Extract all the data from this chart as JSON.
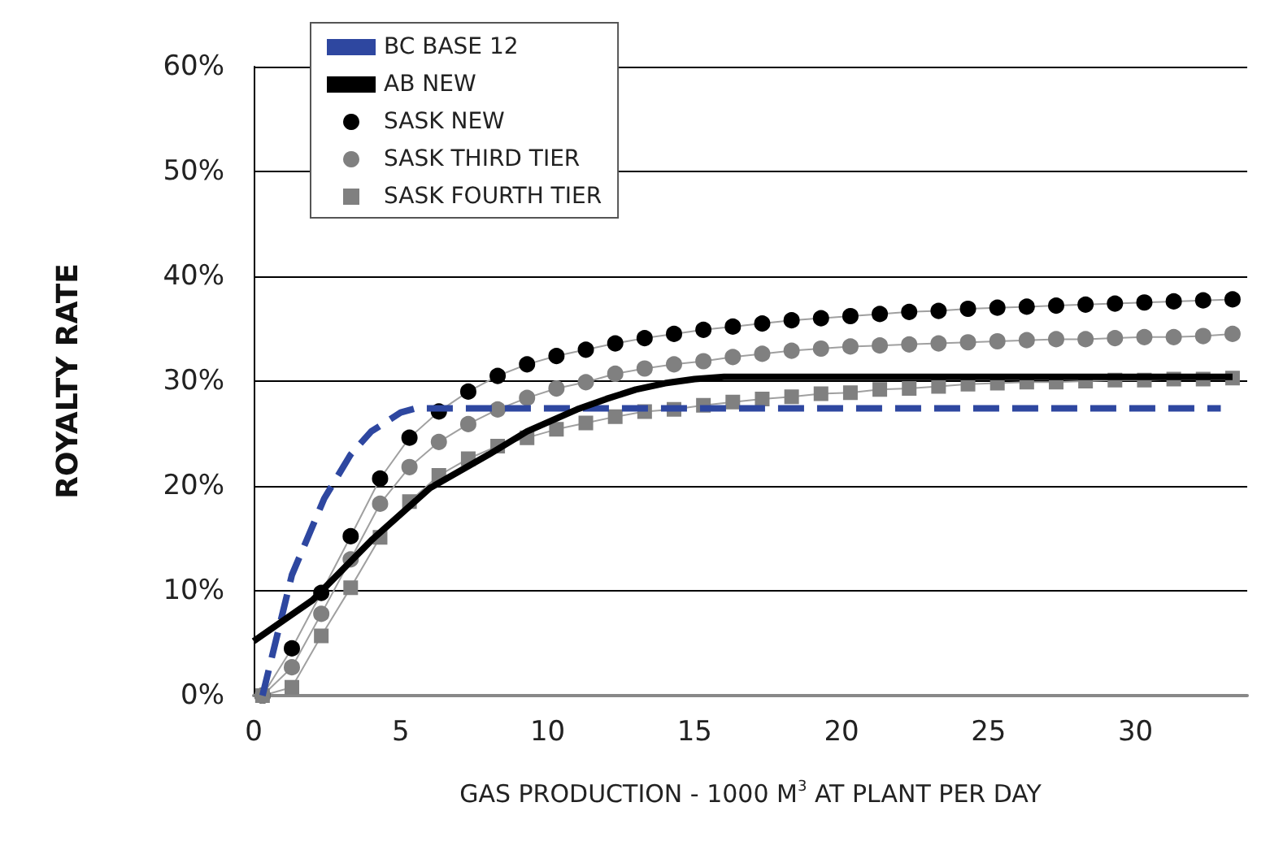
{
  "chart_data": {
    "type": "line",
    "xlabel": "GAS PRODUCTION - 1000 M$^{3}$ AT PLANT PER DAY",
    "ylabel": "ROYALTY RATE",
    "xlim": [
      0,
      33.8
    ],
    "ylim": [
      0,
      60
    ],
    "xticks": [
      0,
      5,
      10,
      15,
      20,
      25,
      30
    ],
    "yticks": [
      {
        "value": 0,
        "label": "0%"
      },
      {
        "value": 10,
        "label": "10%"
      },
      {
        "value": 20,
        "label": "20%"
      },
      {
        "value": 30,
        "label": "30%"
      },
      {
        "value": 40,
        "label": "40%"
      },
      {
        "value": 50,
        "label": "50%"
      },
      {
        "value": 60,
        "label": "60%"
      }
    ],
    "grid": "y",
    "legend": "top left",
    "series": [
      {
        "name": "BC BASE 12",
        "color": "#2e47a0",
        "line_style": "dashed",
        "marker": "none",
        "x": [
          0.3,
          1.3,
          2.4,
          3.3,
          4,
          5,
          5.5,
          32.9
        ],
        "values": [
          0,
          11.5,
          18.8,
          23.0,
          25.2,
          27.0,
          27.4,
          27.4
        ]
      },
      {
        "name": "AB NEW",
        "color": "#000000",
        "line_style": "solid",
        "marker": "none",
        "x": [
          0,
          2,
          4,
          6,
          8,
          9.3,
          11,
          12,
          13,
          14,
          15,
          16,
          20,
          25,
          33.3
        ],
        "values": [
          5.2,
          9.1,
          14.8,
          19.8,
          23.0,
          25.2,
          27.3,
          28.3,
          29.2,
          29.8,
          30.2,
          30.4,
          30.4,
          30.4,
          30.4
        ]
      },
      {
        "name": "SASK NEW",
        "color": "#000000",
        "line_style": "solid",
        "marker": "circle",
        "x": [
          0.3,
          1.3,
          2.3,
          3.3,
          4.3,
          5.3,
          6.3,
          7.3,
          8.3,
          9.3,
          10.3,
          11.3,
          12.3,
          13.3,
          14.3,
          15.3,
          16.3,
          17.3,
          18.3,
          19.3,
          20.3,
          21.3,
          22.3,
          23.3,
          24.3,
          25.3,
          26.3,
          27.3,
          28.3,
          29.3,
          30.3,
          31.3,
          32.3,
          33.3
        ],
        "values": [
          0,
          4.5,
          9.8,
          15.2,
          20.7,
          24.6,
          27.1,
          29.0,
          30.5,
          31.6,
          32.4,
          33.0,
          33.6,
          34.1,
          34.5,
          34.9,
          35.2,
          35.5,
          35.8,
          36.0,
          36.2,
          36.4,
          36.6,
          36.7,
          36.9,
          37.0,
          37.1,
          37.2,
          37.3,
          37.4,
          37.5,
          37.6,
          37.7,
          37.8
        ]
      },
      {
        "name": "SASK THIRD TIER",
        "color": "#808080",
        "line_style": "solid",
        "marker": "circle",
        "x": [
          0.3,
          1.3,
          2.3,
          3.3,
          4.3,
          5.3,
          6.3,
          7.3,
          8.3,
          9.3,
          10.3,
          11.3,
          12.3,
          13.3,
          14.3,
          15.3,
          16.3,
          17.3,
          18.3,
          19.3,
          20.3,
          21.3,
          22.3,
          23.3,
          24.3,
          25.3,
          26.3,
          27.3,
          28.3,
          29.3,
          30.3,
          31.3,
          32.3,
          33.3
        ],
        "values": [
          0,
          2.7,
          7.8,
          13.0,
          18.3,
          21.8,
          24.2,
          25.9,
          27.3,
          28.4,
          29.3,
          29.9,
          30.7,
          31.2,
          31.6,
          31.9,
          32.3,
          32.6,
          32.9,
          33.1,
          33.3,
          33.4,
          33.5,
          33.6,
          33.7,
          33.8,
          33.9,
          34.0,
          34.0,
          34.1,
          34.2,
          34.2,
          34.3,
          34.5
        ]
      },
      {
        "name": "SASK FOURTH TIER",
        "color": "#808080",
        "line_style": "solid",
        "marker": "square",
        "x": [
          0.3,
          1.3,
          2.3,
          3.3,
          4.3,
          5.3,
          6.3,
          7.3,
          8.3,
          9.3,
          10.3,
          11.3,
          12.3,
          13.3,
          14.3,
          15.3,
          16.3,
          17.3,
          18.3,
          19.3,
          20.3,
          21.3,
          22.3,
          23.3,
          24.3,
          25.3,
          26.3,
          27.3,
          28.3,
          29.3,
          30.3,
          31.3,
          32.3,
          33.3
        ],
        "values": [
          0,
          0.8,
          5.7,
          10.3,
          15.1,
          18.5,
          21.0,
          22.6,
          23.8,
          24.6,
          25.4,
          26.0,
          26.6,
          27.1,
          27.3,
          27.7,
          28.0,
          28.3,
          28.5,
          28.8,
          28.9,
          29.2,
          29.3,
          29.5,
          29.7,
          29.8,
          29.9,
          29.9,
          30.0,
          30.1,
          30.1,
          30.2,
          30.2,
          30.3
        ]
      }
    ]
  }
}
